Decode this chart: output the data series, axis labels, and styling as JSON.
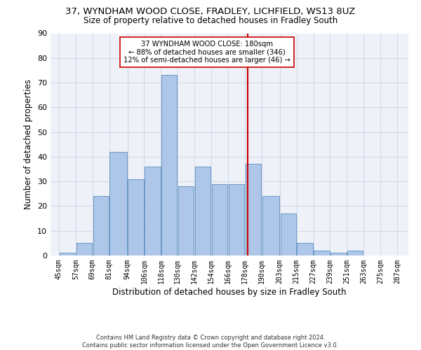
{
  "title_line1": "37, WYNDHAM WOOD CLOSE, FRADLEY, LICHFIELD, WS13 8UZ",
  "title_line2": "Size of property relative to detached houses in Fradley South",
  "xlabel": "Distribution of detached houses by size in Fradley South",
  "ylabel": "Number of detached properties",
  "footnote": "Contains HM Land Registry data © Crown copyright and database right 2024.\nContains public sector information licensed under the Open Government Licence v3.0.",
  "bar_left_edges": [
    45,
    57,
    69,
    81,
    94,
    106,
    118,
    130,
    142,
    154,
    166,
    178,
    190,
    203,
    215,
    227,
    239,
    251,
    263,
    275
  ],
  "bar_widths": [
    12,
    12,
    12,
    13,
    12,
    12,
    12,
    12,
    12,
    12,
    12,
    12,
    13,
    12,
    12,
    12,
    12,
    12,
    12,
    12
  ],
  "bar_heights": [
    1,
    5,
    24,
    42,
    31,
    36,
    73,
    28,
    36,
    29,
    29,
    37,
    24,
    17,
    5,
    2,
    1,
    2,
    0,
    0
  ],
  "bar_color": "#aec6e8",
  "bar_edge_color": "#5a8fc0",
  "tick_labels": [
    "45sqm",
    "57sqm",
    "69sqm",
    "81sqm",
    "94sqm",
    "106sqm",
    "118sqm",
    "130sqm",
    "142sqm",
    "154sqm",
    "166sqm",
    "178sqm",
    "190sqm",
    "203sqm",
    "215sqm",
    "227sqm",
    "239sqm",
    "251sqm",
    "263sqm",
    "275sqm",
    "287sqm"
  ],
  "ylim": [
    0,
    90
  ],
  "yticks": [
    0,
    10,
    20,
    30,
    40,
    50,
    60,
    70,
    80,
    90
  ],
  "vline_x": 180,
  "vline_color": "#cc0000",
  "annotation_text": "37 WYNDHAM WOOD CLOSE: 180sqm\n← 88% of detached houses are smaller (346)\n12% of semi-detached houses are larger (46) →",
  "annotation_box_color": "#ffffff",
  "annotation_box_edge": "#cc0000",
  "grid_color": "#d0d8e8",
  "background_color": "#eef2f8",
  "xlim_left": 39,
  "xlim_right": 295
}
